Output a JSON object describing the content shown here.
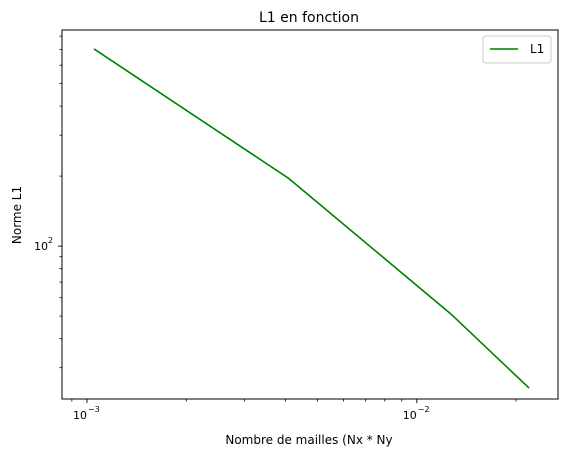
{
  "chart_data": {
    "type": "line",
    "title": "L1 en fonction",
    "xlabel": "Nombre de mailles (Nx * Ny",
    "ylabel": "Norme L1",
    "xscale": "log",
    "yscale": "log",
    "xlim": [
      0.00084,
      0.0268
    ],
    "ylim": [
      22,
      850
    ],
    "x_major_ticks": [
      {
        "value": 0.001,
        "base": "10",
        "exp": "−3"
      },
      {
        "value": 0.01,
        "base": "10",
        "exp": "−2"
      }
    ],
    "y_major_ticks": [
      {
        "value": 100,
        "base": "10",
        "exp": "2"
      }
    ],
    "grid": false,
    "legend_position": "top-right",
    "series": [
      {
        "name": "L1",
        "color": "#008000",
        "x": [
          0.00105,
          0.0041,
          0.0127,
          0.0219
        ],
        "y": [
          705,
          195,
          51,
          24.5
        ]
      }
    ]
  }
}
